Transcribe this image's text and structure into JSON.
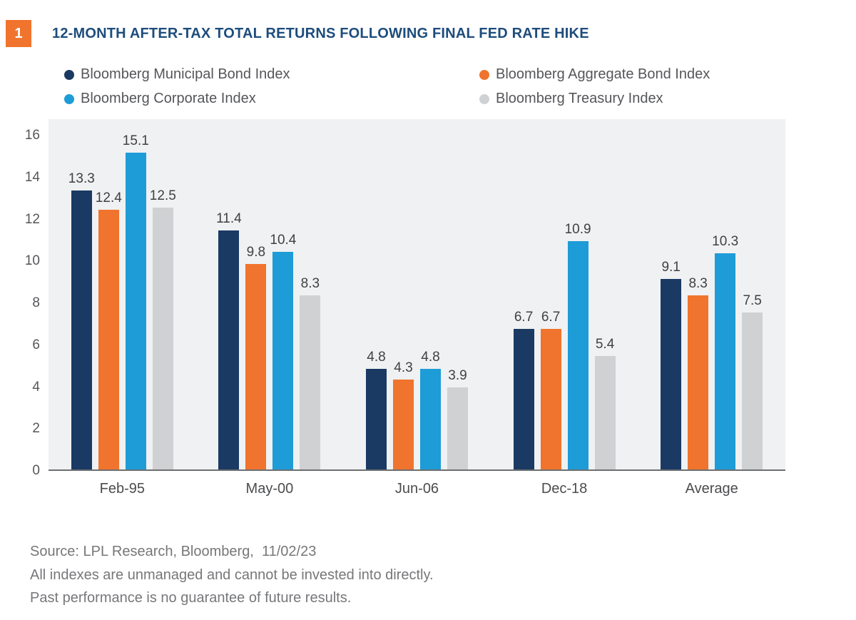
{
  "header": {
    "badge": "1",
    "title": "12-MONTH AFTER-TAX TOTAL RETURNS FOLLOWING FINAL FED RATE HIKE"
  },
  "legend": [
    {
      "label": "Bloomberg Municipal Bond Index",
      "color": "#1a3a64"
    },
    {
      "label": "Bloomberg Aggregate Bond Index",
      "color": "#f0742d"
    },
    {
      "label": "Bloomberg Corporate Index",
      "color": "#1e9cd7"
    },
    {
      "label": "Bloomberg Treasury Index",
      "color": "#cfd1d3"
    }
  ],
  "chart_data": {
    "type": "bar",
    "title": "12-MONTH AFTER-TAX TOTAL RETURNS FOLLOWING FINAL FED RATE HIKE",
    "categories": [
      "Feb-95",
      "May-00",
      "Jun-06",
      "Dec-18",
      "Average"
    ],
    "series": [
      {
        "name": "Bloomberg Municipal Bond Index",
        "color": "#1a3a64",
        "values": [
          13.3,
          11.4,
          4.8,
          6.7,
          9.1
        ]
      },
      {
        "name": "Bloomberg Aggregate Bond Index",
        "color": "#f0742d",
        "values": [
          12.4,
          9.8,
          4.3,
          6.7,
          8.3
        ]
      },
      {
        "name": "Bloomberg Corporate Index",
        "color": "#1e9cd7",
        "values": [
          15.1,
          10.4,
          4.8,
          10.9,
          10.3
        ]
      },
      {
        "name": "Bloomberg Treasury Index",
        "color": "#cfd1d3",
        "values": [
          12.5,
          8.3,
          3.9,
          5.4,
          7.5
        ]
      }
    ],
    "xlabel": "",
    "ylabel": "",
    "ylim": [
      0,
      16
    ],
    "ytick_step": 2,
    "grid": false,
    "legend_position": "top",
    "plot_bg": "#eff1f2",
    "data_labels": true,
    "data_label_decimals": 1
  },
  "footer": {
    "lines": [
      "Source: LPL Research, Bloomberg,  11/02/23",
      "All indexes are unmanaged and cannot be invested into directly.",
      "Past performance is no guarantee of future results."
    ]
  }
}
